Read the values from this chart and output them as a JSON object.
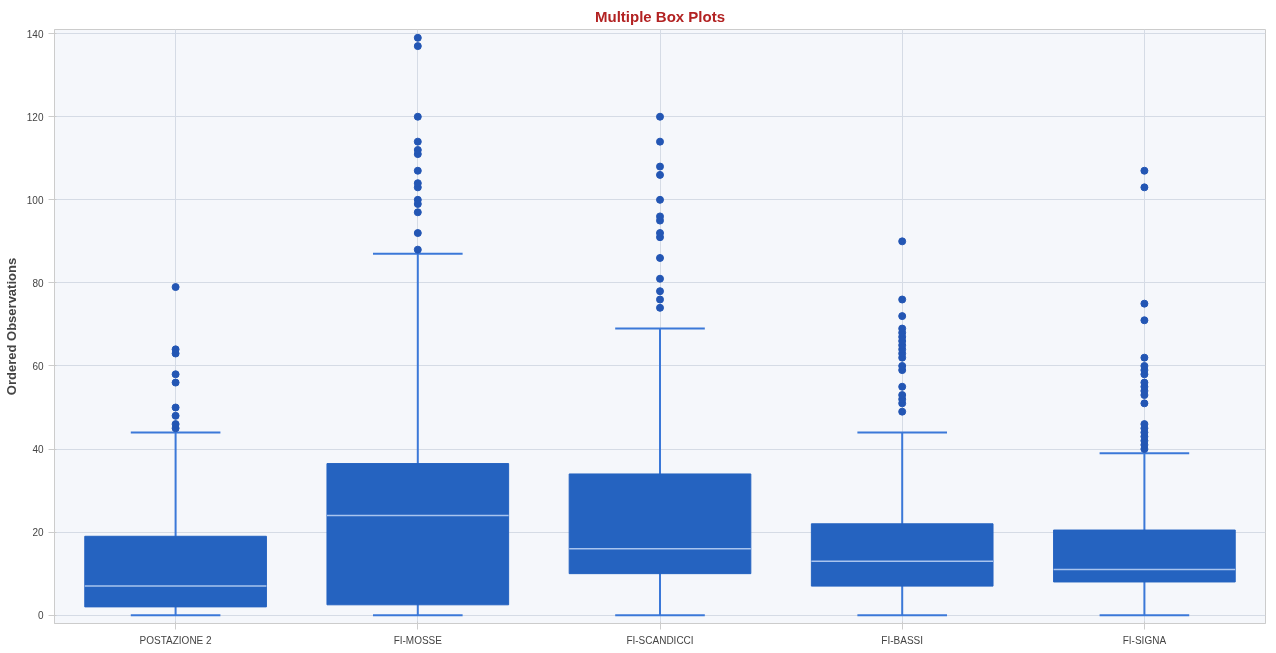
{
  "chart_data": {
    "type": "box",
    "title": "Multiple Box Plots",
    "ylabel": "Ordered Observations",
    "categories": [
      "POSTAZIONE 2",
      "FI-MOSSE",
      "FI-SCANDICCI",
      "FI-BASSI",
      "FI-SIGNA"
    ],
    "color": "#2563c0",
    "boxes": [
      {
        "low": 0,
        "q1": 2,
        "median": 7,
        "q3": 19,
        "high": 44,
        "outliers": [
          45,
          46,
          48,
          50,
          56,
          58,
          63,
          64,
          79
        ]
      },
      {
        "low": 0,
        "q1": 2.5,
        "median": 24,
        "q3": 36.5,
        "high": 87,
        "outliers": [
          88,
          92,
          97,
          99,
          100,
          103,
          104,
          107,
          111,
          112,
          114,
          120,
          137,
          139
        ]
      },
      {
        "low": 0,
        "q1": 10,
        "median": 16,
        "q3": 34,
        "high": 69,
        "outliers": [
          74,
          76,
          78,
          81,
          86,
          91,
          92,
          95,
          96,
          100,
          106,
          108,
          114,
          120
        ]
      },
      {
        "low": 0,
        "q1": 7,
        "median": 13,
        "q3": 22,
        "high": 44,
        "outliers": [
          49,
          51,
          52,
          53,
          55,
          59,
          60,
          62,
          63,
          64,
          65,
          66,
          67,
          68,
          69,
          72,
          76,
          90
        ]
      },
      {
        "low": 0,
        "q1": 8,
        "median": 11,
        "q3": 20.5,
        "high": 39,
        "outliers": [
          40,
          41,
          42,
          43,
          44,
          45,
          46,
          51,
          53,
          54,
          55,
          56,
          58,
          59,
          60,
          62,
          71,
          75,
          103,
          107
        ]
      }
    ],
    "ylim": [
      -2,
      141
    ],
    "yticks": [
      0,
      20,
      40,
      60,
      80,
      100,
      120,
      140
    ],
    "grid": true
  }
}
